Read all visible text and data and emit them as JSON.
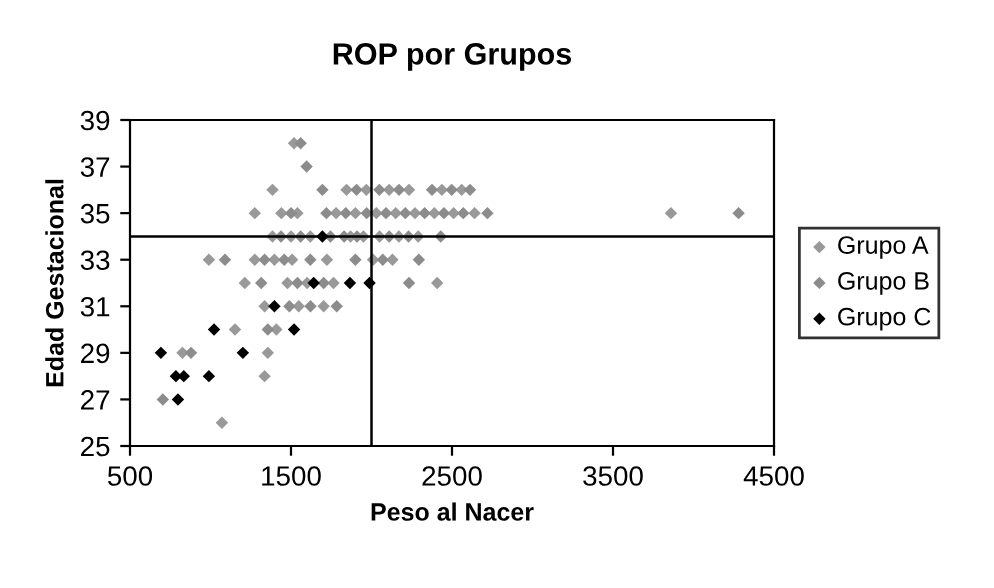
{
  "chart_data": {
    "type": "scatter",
    "title": "ROP por Grupos",
    "xlabel": "Peso al Nacer",
    "ylabel": "Edad Gestacional",
    "xlim": [
      500,
      4500
    ],
    "xticks": [
      500,
      1500,
      2500,
      3500,
      4500
    ],
    "ylim": [
      25,
      39
    ],
    "yticks": [
      25,
      27,
      29,
      31,
      33,
      35,
      37,
      39
    ],
    "grid": false,
    "legend": "right",
    "marker": "diamond",
    "ref_lines": [
      {
        "axis": "x",
        "value": 2000,
        "color": "#000000"
      },
      {
        "axis": "y",
        "value": 34,
        "color": "#000000"
      }
    ],
    "series": [
      {
        "name": "Grupo A",
        "color": "#999999",
        "x": [
          1519,
          1385,
          1845,
          1968,
          2110,
          2233,
          2437,
          2560,
          1275,
          1440,
          1540,
          1780,
          1900,
          2030,
          2150,
          2270,
          2390,
          2510,
          2640,
          3860,
          1385,
          1500,
          1620,
          1870,
          1950,
          2050,
          2170,
          2290,
          990,
          1275,
          1397,
          1507,
          1723,
          2010,
          2130,
          1213,
          1478,
          1600,
          1764,
          2408,
          1336,
          1548,
          1703,
          1152,
          1409,
          826,
          1356,
          1336,
          1071
        ],
        "values": [
          38,
          36,
          36,
          36,
          36,
          36,
          36,
          36,
          35,
          35,
          35,
          35,
          35,
          35,
          35,
          35,
          35,
          35,
          35,
          35,
          34,
          34,
          34,
          34,
          34,
          34,
          34,
          34,
          33,
          33,
          33,
          33,
          33,
          33,
          33,
          32,
          32,
          32,
          32,
          32,
          31,
          31,
          31,
          30,
          30,
          29,
          29,
          28,
          26
        ]
      },
      {
        "name": "Grupo B",
        "color": "#8c8c8c",
        "x": [
          1560,
          1597,
          1695,
          1907,
          2049,
          2171,
          2376,
          2498,
          2612,
          1500,
          1720,
          1840,
          1970,
          2090,
          2210,
          2330,
          2450,
          2570,
          2720,
          4280,
          1438,
          1560,
          1745,
          1830,
          1910,
          2110,
          2230,
          2430,
          1090,
          1336,
          1458,
          1620,
          1900,
          2070,
          2294,
          1315,
          1540,
          1703,
          2233,
          1490,
          1621,
          1784,
          1356,
          879,
          704
        ],
        "values": [
          38,
          37,
          36,
          36,
          36,
          36,
          36,
          36,
          36,
          35,
          35,
          35,
          35,
          35,
          35,
          35,
          35,
          35,
          35,
          35,
          34,
          34,
          34,
          34,
          34,
          34,
          34,
          34,
          33,
          33,
          33,
          33,
          33,
          33,
          33,
          32,
          32,
          32,
          32,
          31,
          31,
          31,
          30,
          29,
          27
        ]
      },
      {
        "name": "Grupo C",
        "color": "#000000",
        "x": [
          1695,
          1641,
          1866,
          1988,
          1397,
          1022,
          1519,
          692,
          1201,
          785,
          834,
          990,
          798
        ],
        "values": [
          34,
          32,
          32,
          32,
          31,
          30,
          30,
          29,
          29,
          28,
          28,
          28,
          27
        ]
      }
    ]
  }
}
